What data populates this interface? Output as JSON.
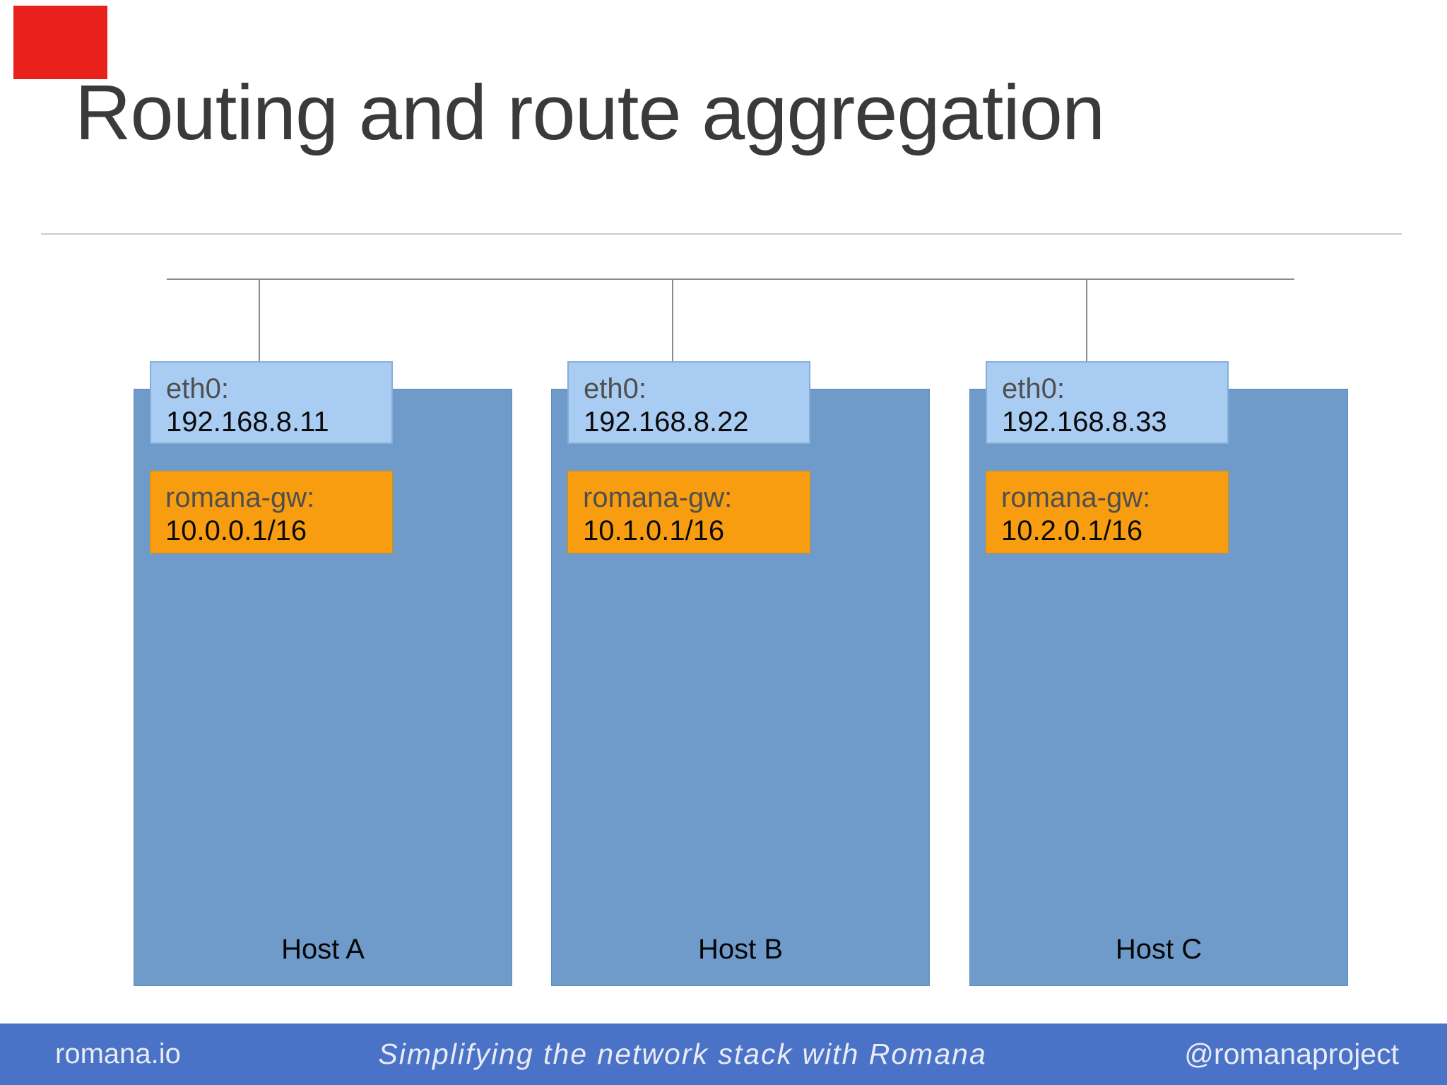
{
  "slide": {
    "title": "Routing and route aggregation"
  },
  "hosts": [
    {
      "name": "Host A",
      "interface": {
        "label": "eth0:",
        "ip": "192.168.8.11"
      },
      "gateway": {
        "label": "romana-gw:",
        "cidr": "10.0.0.1/16"
      }
    },
    {
      "name": "Host B",
      "interface": {
        "label": "eth0:",
        "ip": "192.168.8.22"
      },
      "gateway": {
        "label": "romana-gw:",
        "cidr": "10.1.0.1/16"
      }
    },
    {
      "name": "Host C",
      "interface": {
        "label": "eth0:",
        "ip": "192.168.8.33"
      },
      "gateway": {
        "label": "romana-gw:",
        "cidr": "10.2.0.1/16"
      }
    }
  ],
  "footer": {
    "site": "romana.io",
    "tagline": "Simplifying the network stack with Romana",
    "handle": "@romanaproject"
  },
  "colors": {
    "host_fill": "#6f9bcb",
    "interface_fill": "#a9cdf2",
    "gateway_fill": "#f99d10",
    "footer_bg": "#4a72c6",
    "corner_flag": "#e8211c",
    "title_text": "#3a3a3a",
    "connector_gray": "#8b8b8b"
  }
}
